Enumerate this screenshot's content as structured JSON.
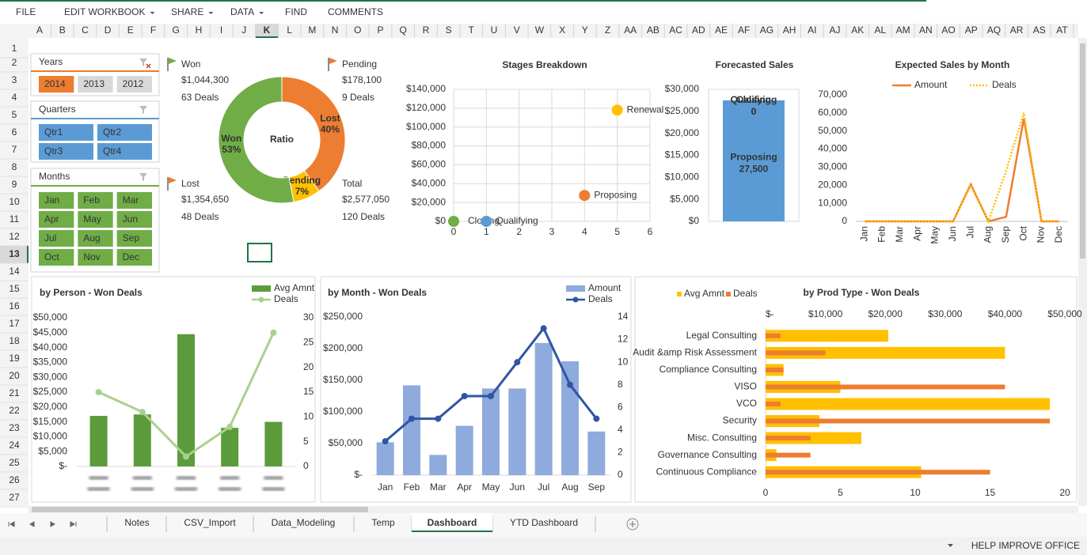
{
  "menu": [
    {
      "label": "FILE",
      "dropdown": false
    },
    {
      "label": "EDIT WORKBOOK",
      "dropdown": true
    },
    {
      "label": "SHARE",
      "dropdown": true
    },
    {
      "label": "DATA",
      "dropdown": true
    },
    {
      "label": "FIND",
      "dropdown": false
    },
    {
      "label": "COMMENTS",
      "dropdown": false
    }
  ],
  "column_headers": [
    "A",
    "B",
    "C",
    "D",
    "E",
    "F",
    "G",
    "H",
    "I",
    "J",
    "K",
    "L",
    "M",
    "N",
    "O",
    "P",
    "Q",
    "R",
    "S",
    "T",
    "U",
    "V",
    "W",
    "X",
    "Y",
    "Z",
    "AA",
    "AB",
    "AC",
    "AD",
    "AE",
    "AF",
    "AG",
    "AH",
    "AI",
    "AJ",
    "AK",
    "AL",
    "AM",
    "AN",
    "AO",
    "AP",
    "AQ",
    "AR",
    "AS",
    "AT"
  ],
  "row_headers": [
    1,
    2,
    3,
    4,
    5,
    6,
    7,
    8,
    9,
    10,
    11,
    12,
    13,
    14,
    15,
    16,
    17,
    18,
    19,
    20,
    21,
    22,
    23,
    24,
    25,
    26,
    27
  ],
  "active_cell": {
    "row": 12,
    "column": 10
  },
  "slicers": [
    {
      "title": "Years",
      "items": [
        "2014",
        "2013",
        "2012"
      ],
      "selected": [
        0
      ],
      "color": "#ed7d31",
      "title_color": "#c55a11",
      "columns": 3
    },
    {
      "title": "Quarters",
      "items": [
        "Qtr1",
        "Qtr2",
        "Qtr3",
        "Qtr4"
      ],
      "selected": [
        0,
        1,
        2,
        3
      ],
      "color": "#5b9bd5",
      "title_color": "#2e75b6",
      "columns": 2
    },
    {
      "title": "Months",
      "items": [
        "Jan",
        "Feb",
        "Mar",
        "Apr",
        "May",
        "Jun",
        "Jul",
        "Aug",
        "Sep",
        "Oct",
        "Nov",
        "Dec"
      ],
      "selected": [
        0,
        1,
        2,
        3,
        4,
        5,
        6,
        7,
        8,
        9,
        10,
        11
      ],
      "color": "#70ad47",
      "title_color": "#548235",
      "columns": 3
    }
  ],
  "kpis": [
    {
      "label": "Won",
      "amount": "$1,044,300",
      "deals": "63 Deals",
      "flag_color": "#70ad47"
    },
    {
      "label": "Pending",
      "amount": "$178,100",
      "deals": "9 Deals",
      "flag_color": "#ed7d31"
    },
    {
      "label": "Lost",
      "amount": "$1,354,650",
      "deals": "48 Deals",
      "flag_color": "#ed7d31"
    },
    {
      "label": "Total",
      "amount": "$2,577,050",
      "deals": "120 Deals"
    }
  ],
  "chart_data": [
    {
      "type": "pie",
      "title": "Ratio",
      "categories": [
        "Lost",
        "Pending",
        "Won"
      ],
      "values": [
        40,
        7,
        53
      ],
      "value_labels": [
        "40%",
        "7%",
        "53%"
      ],
      "colors": [
        "#ed7d31",
        "#ffc000",
        "#70ad47"
      ]
    },
    {
      "type": "scatter",
      "title": "Stages Breakdown",
      "title_color": "#1f3864",
      "labels": [
        "Closing",
        "Qualifying",
        "Proposing",
        "Renewal"
      ],
      "x": [
        0,
        1,
        4,
        5
      ],
      "y": [
        0,
        0,
        27500,
        118000
      ],
      "colors": [
        "#70ad47",
        "#5b9bd5",
        "#ed7d31",
        "#ffc000"
      ],
      "xlim": [
        0,
        6
      ],
      "xticks": [
        0,
        1,
        2,
        3,
        4,
        5,
        6
      ],
      "ylim": [
        0,
        140000
      ],
      "yticks": [
        {
          "value": 0,
          "label": "$0"
        },
        {
          "value": 20000,
          "label": "$20,000"
        },
        {
          "value": 40000,
          "label": "$40,000"
        },
        {
          "value": 60000,
          "label": "$60,000"
        },
        {
          "value": 80000,
          "label": "$80,000"
        },
        {
          "value": 100000,
          "label": "$100,000"
        },
        {
          "value": 120000,
          "label": "$120,000"
        },
        {
          "value": 140000,
          "label": "$140,000"
        }
      ],
      "grid": true
    },
    {
      "type": "bar",
      "stacked": true,
      "title": "Forecasted Sales",
      "title_color": "#1f3864",
      "series": [
        {
          "name": "Proposing",
          "color": "#5b9bd5",
          "values": [
            27500
          ],
          "value_labels": [
            "27,500"
          ]
        },
        {
          "name": "Closing",
          "color": "#70ad47",
          "values": [
            0
          ],
          "value_labels": [
            "0"
          ]
        },
        {
          "name": "Qualifying",
          "color": "#a5a5a5",
          "values": [
            0
          ],
          "value_labels": [
            "0"
          ]
        }
      ],
      "ylim": [
        0,
        30000
      ],
      "yticks": [
        {
          "value": 0,
          "label": "$0"
        },
        {
          "value": 5000,
          "label": "$5,000"
        },
        {
          "value": 10000,
          "label": "$10,000"
        },
        {
          "value": 15000,
          "label": "$15,000"
        },
        {
          "value": 20000,
          "label": "$20,000"
        },
        {
          "value": 25000,
          "label": "$25,000"
        },
        {
          "value": 30000,
          "label": "$30,000"
        }
      ]
    },
    {
      "type": "line",
      "title": "Expected Sales by Month",
      "title_color": "#1f3864",
      "categories": [
        "Jan",
        "Feb",
        "Mar",
        "Apr",
        "May",
        "Jun",
        "Jul",
        "Aug",
        "Sep",
        "Oct",
        "Nov",
        "Dec"
      ],
      "series": [
        {
          "name": "Amount",
          "color": "#ed7d31",
          "style": "solid",
          "values": [
            0,
            0,
            0,
            0,
            0,
            0,
            20500,
            0,
            2500,
            57000,
            0,
            0
          ]
        },
        {
          "name": "Deals",
          "color": "#ffc000",
          "style": "dotted",
          "values": [
            0,
            0,
            0,
            0,
            0,
            0,
            20000,
            0,
            28000,
            60000,
            0,
            0
          ]
        }
      ],
      "ylim": [
        0,
        70000
      ],
      "yticks": [
        0,
        {
          "value": 10000,
          "label": "10,000"
        },
        {
          "value": 20000,
          "label": "20,000"
        },
        {
          "value": 30000,
          "label": "30,000"
        },
        {
          "value": 40000,
          "label": "40,000"
        },
        {
          "value": 50000,
          "label": "50,000"
        },
        {
          "value": 60000,
          "label": "60,000"
        },
        {
          "value": 70000,
          "label": "70,000"
        }
      ]
    },
    {
      "type": "bar",
      "title": "by Person - Won Deals",
      "title_color": "#548235",
      "categories": [
        null,
        null,
        null,
        null,
        null
      ],
      "series": [
        {
          "name": "Avg Amnt",
          "color": "#5b9b3c",
          "values": [
            17000,
            17500,
            44500,
            13000,
            15000
          ]
        },
        {
          "name": "Deals",
          "color": "#a9d18e",
          "type": "line",
          "axis": "y2",
          "values": [
            15,
            11,
            2,
            8,
            27
          ]
        }
      ],
      "ylim": [
        0,
        50000
      ],
      "yticks": [
        {
          "value": 0,
          "label": "$-"
        },
        {
          "value": 5000,
          "label": "$5,000"
        },
        {
          "value": 10000,
          "label": "$10,000"
        },
        {
          "value": 15000,
          "label": "$15,000"
        },
        {
          "value": 20000,
          "label": "$20,000"
        },
        {
          "value": 25000,
          "label": "$25,000"
        },
        {
          "value": 30000,
          "label": "$30,000"
        },
        {
          "value": 35000,
          "label": "$35,000"
        },
        {
          "value": 40000,
          "label": "$40,000"
        },
        {
          "value": 45000,
          "label": "$45,000"
        },
        {
          "value": 50000,
          "label": "$50,000"
        }
      ],
      "y2lim": [
        0,
        30
      ],
      "y2ticks": [
        0,
        5,
        10,
        15,
        20,
        25,
        30
      ]
    },
    {
      "type": "bar",
      "title": "by Month - Won Deals",
      "title_color": "#1f3864",
      "categories": [
        "Jan",
        "Feb",
        "Mar",
        "Apr",
        "May",
        "Jun",
        "Jul",
        "Aug",
        "Sep"
      ],
      "series": [
        {
          "name": "Amount",
          "color": "#8faadc",
          "values": [
            52000,
            142000,
            32000,
            78000,
            137000,
            137000,
            209000,
            180000,
            69000
          ]
        },
        {
          "name": "Deals",
          "color": "#2f55a4",
          "type": "line",
          "axis": "y2",
          "values": [
            3,
            5,
            5,
            7,
            7,
            10,
            13,
            8,
            5
          ]
        }
      ],
      "ylim": [
        0,
        250000
      ],
      "yticks": [
        {
          "value": 0,
          "label": "$-"
        },
        {
          "value": 50000,
          "label": "$50,000"
        },
        {
          "value": 100000,
          "label": "$100,000"
        },
        {
          "value": 150000,
          "label": "$150,000"
        },
        {
          "value": 200000,
          "label": "$200,000"
        },
        {
          "value": 250000,
          "label": "$250,000"
        }
      ],
      "y2lim": [
        0,
        14
      ],
      "y2ticks": [
        0,
        2,
        4,
        6,
        8,
        10,
        12,
        14
      ]
    },
    {
      "type": "bar",
      "orientation": "horizontal",
      "title": "by Prod Type - Won Deals",
      "title_color": "#c55a11",
      "categories": [
        "Legal Consulting",
        "Audit &amp Risk Assessment",
        "Compliance Consulting",
        "VISO",
        "VCO",
        "Security",
        "Misc. Consulting",
        "Governance Consulting",
        "Continuous Compliance"
      ],
      "series": [
        {
          "name": "Avg Amnt",
          "color": "#ffc000",
          "axis": "x2",
          "values": [
            20500,
            40000,
            3000,
            12500,
            47500,
            9000,
            16000,
            1800,
            26000
          ]
        },
        {
          "name": "Deals",
          "color": "#ed7d31",
          "values": [
            1,
            4,
            1.2,
            16,
            1,
            19,
            3,
            3,
            15
          ]
        }
      ],
      "xlim": [
        0,
        20
      ],
      "xticks": [
        0,
        5,
        10,
        15,
        20
      ],
      "x2lim": [
        0,
        50000
      ],
      "x2ticks": [
        {
          "value": 0,
          "label": "$-"
        },
        {
          "value": 10000,
          "label": "$10,000"
        },
        {
          "value": 20000,
          "label": "$20,000"
        },
        {
          "value": 30000,
          "label": "$30,000"
        },
        {
          "value": 40000,
          "label": "$40,000"
        },
        {
          "value": 50000,
          "label": "$50,000"
        }
      ]
    }
  ],
  "sheet_tabs": [
    "Notes",
    "CSV_Import",
    "Data_Modeling",
    "Temp",
    "Dashboard",
    "YTD Dashboard"
  ],
  "active_tab": 4,
  "status_bar": "HELP IMPROVE OFFICE"
}
